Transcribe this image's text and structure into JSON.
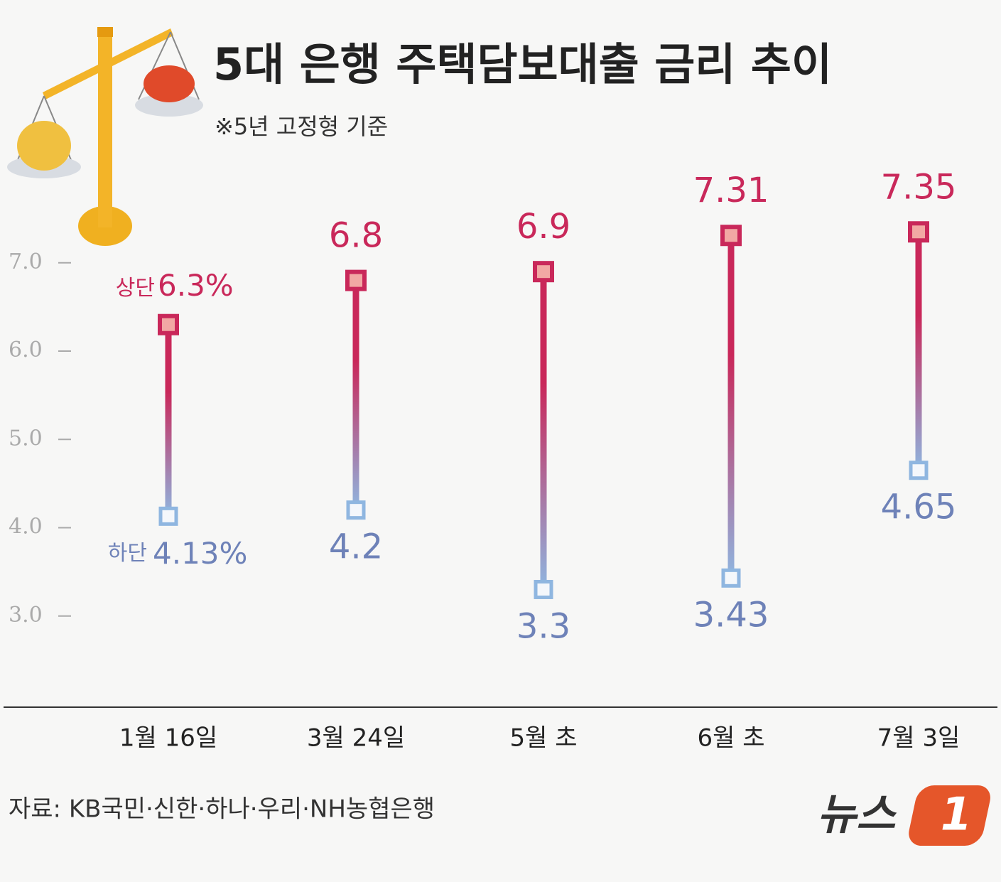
{
  "chart_data": {
    "type": "range",
    "title": "5대 은행 주택담보대출 금리 추이",
    "subtitle": "※5년 고정형 기준",
    "source": "자료: KB국민·신한·하나·우리·NH농협은행",
    "logo": {
      "text": "뉴스",
      "badge": "1"
    },
    "categories": [
      "1월 16일",
      "3월 24일",
      "5월 초",
      "6월 초",
      "7월 3일"
    ],
    "series": [
      {
        "name": "상단",
        "color": "#c9285a",
        "values": [
          6.3,
          6.8,
          6.9,
          7.31,
          7.35
        ],
        "value_labels": [
          "6.3%",
          "6.8",
          "6.9",
          "7.31",
          "7.35"
        ]
      },
      {
        "name": "하단",
        "color": "#6e82b8",
        "values": [
          4.13,
          4.2,
          3.3,
          3.43,
          4.65
        ],
        "value_labels": [
          "4.13%",
          "4.2",
          "3.3",
          "3.43",
          "4.65"
        ]
      }
    ],
    "ylim": [
      2,
      10
    ],
    "yticks": [
      {
        "value": 3,
        "label": "3.0"
      },
      {
        "value": 4,
        "label": "4.0"
      },
      {
        "value": 5,
        "label": "5.0"
      },
      {
        "value": 6,
        "label": "6.0"
      },
      {
        "value": 7,
        "label": "7.0"
      }
    ]
  }
}
